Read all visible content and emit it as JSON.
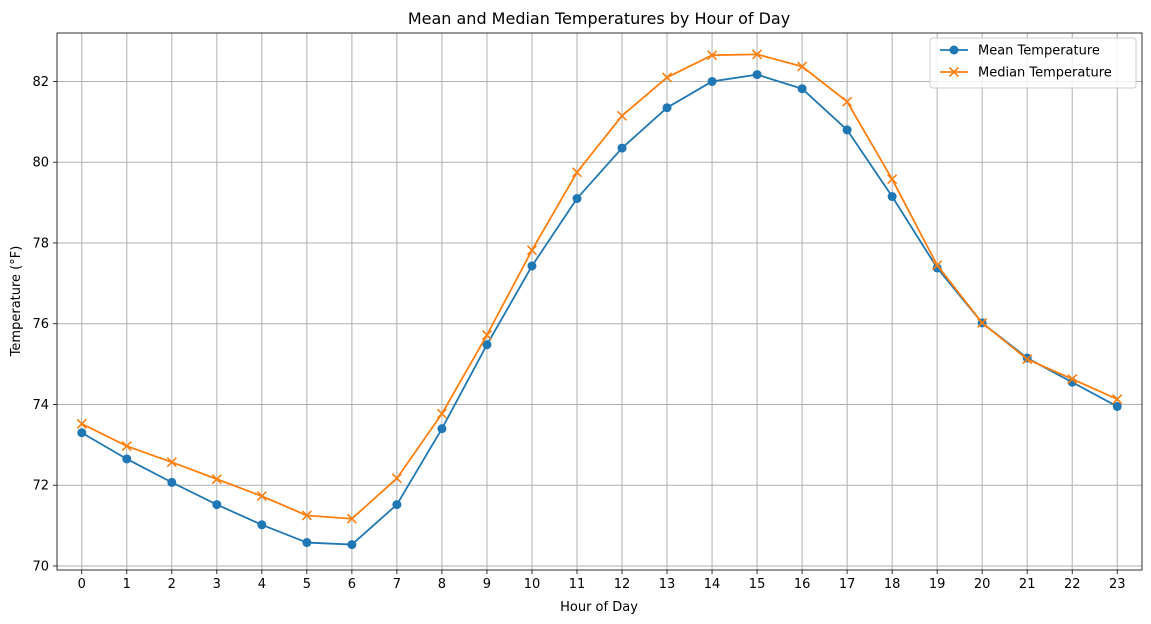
{
  "chart_data": {
    "type": "line",
    "title": "Mean and Median Temperatures by Hour of Day",
    "xlabel": "Hour of Day",
    "ylabel": "Temperature (°F)",
    "x": [
      0,
      1,
      2,
      3,
      4,
      5,
      6,
      7,
      8,
      9,
      10,
      11,
      12,
      13,
      14,
      15,
      16,
      17,
      18,
      19,
      20,
      21,
      22,
      23
    ],
    "xticks": [
      "0",
      "1",
      "2",
      "3",
      "4",
      "5",
      "6",
      "7",
      "8",
      "9",
      "10",
      "11",
      "12",
      "13",
      "14",
      "15",
      "16",
      "17",
      "18",
      "19",
      "20",
      "21",
      "22",
      "23"
    ],
    "yticks": [
      70,
      72,
      74,
      76,
      78,
      80,
      82
    ],
    "ylim": [
      69.9,
      83.2
    ],
    "xlim": [
      -0.55,
      23.55
    ],
    "grid": true,
    "legend_position": "top-right",
    "series": [
      {
        "name": "Mean Temperature",
        "color": "#1f77b4",
        "marker": "circle",
        "values": [
          73.3,
          72.65,
          72.07,
          71.52,
          71.02,
          70.58,
          70.53,
          71.52,
          73.4,
          75.48,
          77.43,
          79.1,
          80.35,
          81.35,
          82.0,
          82.17,
          81.82,
          80.8,
          79.15,
          77.38,
          76.02,
          75.15,
          74.55,
          73.95
        ]
      },
      {
        "name": "Median Temperature",
        "color": "#ff7f0e",
        "marker": "x",
        "values": [
          73.52,
          72.97,
          72.57,
          72.15,
          71.73,
          71.25,
          71.17,
          72.17,
          73.77,
          75.72,
          77.82,
          79.75,
          81.15,
          82.1,
          82.65,
          82.67,
          82.37,
          81.5,
          79.58,
          77.45,
          76.02,
          75.12,
          74.63,
          74.13
        ]
      }
    ]
  }
}
